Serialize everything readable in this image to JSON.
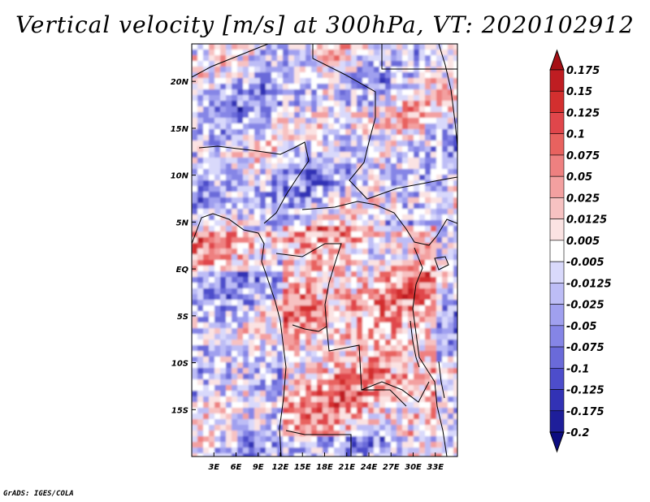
{
  "title": "Vertical velocity [m/s] at 300hPa, VT: 2020102912",
  "credit": "GrADS: IGES/COLA",
  "map": {
    "lon_range": [
      0,
      36
    ],
    "lat_range": [
      -20,
      24
    ],
    "lon_ticks": [
      "3E",
      "6E",
      "9E",
      "12E",
      "15E",
      "18E",
      "21E",
      "24E",
      "27E",
      "30E",
      "33E"
    ],
    "lat_ticks": [
      "20N",
      "15N",
      "10N",
      "5N",
      "EQ",
      "5S",
      "10S",
      "15S"
    ]
  },
  "colorbar": {
    "labels": [
      "0.175",
      "0.15",
      "0.125",
      "0.1",
      "0.075",
      "0.05",
      "0.025",
      "0.0125",
      "0.005",
      "-0.005",
      "-0.0125",
      "-0.025",
      "-0.05",
      "-0.075",
      "-0.1",
      "-0.125",
      "-0.175",
      "-0.2"
    ],
    "colors": [
      "#a50f15",
      "#bf1d22",
      "#d32f2f",
      "#e0464b",
      "#e8625f",
      "#ee8080",
      "#f3a0a0",
      "#f7c2c2",
      "#fbe3e3",
      "#ffffff",
      "#d9d9fb",
      "#bdbdf6",
      "#a0a0ef",
      "#8585e6",
      "#6a6ad9",
      "#4d4dcb",
      "#3232b5",
      "#1e1e9a",
      "#0c0c80"
    ]
  },
  "chart_data": {
    "type": "heatmap",
    "title": "Vertical velocity [m/s] at 300hPa, VT: 2020102912",
    "variable": "Vertical velocity",
    "units": "m/s",
    "level": "300hPa",
    "valid_time": "2020102912",
    "x_range_deg_east": [
      0,
      36
    ],
    "y_range_deg": [
      -20,
      24
    ],
    "color_levels": [
      -0.2,
      -0.175,
      -0.125,
      -0.1,
      -0.075,
      -0.05,
      -0.025,
      -0.0125,
      -0.005,
      0.005,
      0.0125,
      0.025,
      0.05,
      0.075,
      0.1,
      0.125,
      0.15,
      0.175
    ]
  }
}
